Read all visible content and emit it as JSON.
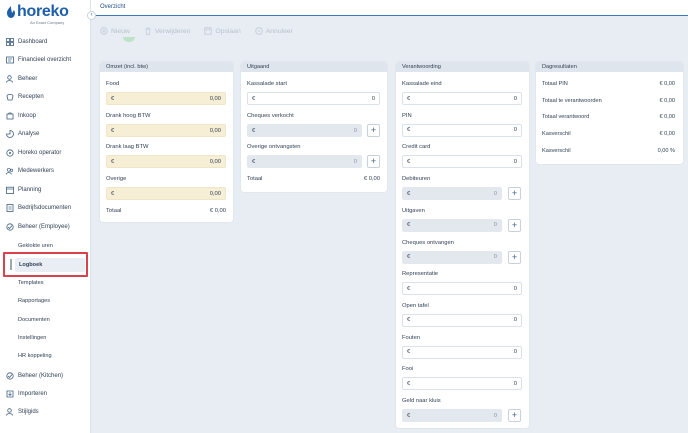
{
  "brand": {
    "name": "horeko",
    "subtitle": "An Exact Company",
    "color": "#1f5fa8"
  },
  "topbar": {
    "breadcrumb": "Overzicht"
  },
  "toolbar": {
    "new_label": "Nieuw",
    "delete_label": "Verwijderen",
    "save_label": "Opslaan",
    "cancel_label": "Annuleer"
  },
  "sidebar": {
    "items": [
      {
        "label": "Dashboard",
        "icon": "grid-icon"
      },
      {
        "label": "Financieel overzicht",
        "icon": "finance-icon"
      },
      {
        "label": "Beheer",
        "icon": "user-icon"
      },
      {
        "label": "Recepten",
        "icon": "recipe-icon"
      },
      {
        "label": "Inkoop",
        "icon": "cart-icon"
      },
      {
        "label": "Analyse",
        "icon": "analysis-icon"
      },
      {
        "label": "Horeko operator",
        "icon": "operator-icon"
      },
      {
        "label": "Medewerkers",
        "icon": "users-icon"
      },
      {
        "label": "Planning",
        "icon": "calendar-icon"
      },
      {
        "label": "Bedrijfsdocumenten",
        "icon": "folder-icon"
      },
      {
        "label": "Beheer (Employee)",
        "icon": "employee-icon"
      }
    ],
    "sub_items": [
      {
        "label": "Geklokte uren"
      },
      {
        "label": "Logboek"
      },
      {
        "label": "Templates"
      },
      {
        "label": "Rapportages"
      },
      {
        "label": "Documenten"
      },
      {
        "label": "Instellingen"
      },
      {
        "label": "HR koppeling"
      }
    ],
    "bottom_items": [
      {
        "label": "Beheer (Kitchen)",
        "icon": "kitchen-icon"
      },
      {
        "label": "Importeren",
        "icon": "import-icon"
      },
      {
        "label": "Stijlgids",
        "icon": "style-icon"
      }
    ]
  },
  "omzet": {
    "title": "Omzet (incl. btw)",
    "fields": [
      {
        "label": "Food",
        "currency": "€",
        "value": "0,00"
      },
      {
        "label": "Drank hoog BTW",
        "currency": "€",
        "value": "0,00"
      },
      {
        "label": "Drank laag BTW",
        "currency": "€",
        "value": "0,00"
      },
      {
        "label": "Overige",
        "currency": "€",
        "value": "0,00"
      }
    ],
    "total_label": "Totaal",
    "total_value": "€ 0,00"
  },
  "uitgaand": {
    "title": "Uitgaand",
    "fields": [
      {
        "label": "Kassalade start",
        "currency": "€",
        "value": "0"
      },
      {
        "label": "Cheques verkocht",
        "currency": "€",
        "value": "0"
      },
      {
        "label": "Overige ontvangsten",
        "currency": "€",
        "value": "0"
      }
    ],
    "total_label": "Totaal",
    "total_value": "€ 0,00"
  },
  "verantwoording": {
    "title": "Verantwoording",
    "fields": [
      {
        "label": "Kassalade eind",
        "currency": "€",
        "value": "0"
      },
      {
        "label": "PIN",
        "currency": "€",
        "value": "0"
      },
      {
        "label": "Credit card",
        "currency": "€",
        "value": "0"
      },
      {
        "label": "Debiteuren",
        "currency": "€",
        "value": "0"
      },
      {
        "label": "Uitgaven",
        "currency": "€",
        "value": "0"
      },
      {
        "label": "Cheques ontvangen",
        "currency": "€",
        "value": "0"
      },
      {
        "label": "Representatie",
        "currency": "€",
        "value": "0"
      },
      {
        "label": "Open tafel",
        "currency": "€",
        "value": "0"
      },
      {
        "label": "Fouten",
        "currency": "€",
        "value": "0"
      },
      {
        "label": "Fooi",
        "currency": "€",
        "value": "0"
      },
      {
        "label": "Geld naar kluis",
        "currency": "€",
        "value": "0"
      }
    ]
  },
  "dagresultaten": {
    "title": "Dagresultaten",
    "rows": [
      {
        "label": "Totaal PIN",
        "value": "€ 0,00"
      },
      {
        "label": "Totaal te verantwoorden",
        "value": "€ 0,00"
      },
      {
        "label": "Totaal verantwoord",
        "value": "€ 0,00"
      },
      {
        "label": "Kasverschil",
        "value": "€ 0,00"
      },
      {
        "label": "Kasverschil",
        "value": "0,00 %"
      }
    ]
  }
}
